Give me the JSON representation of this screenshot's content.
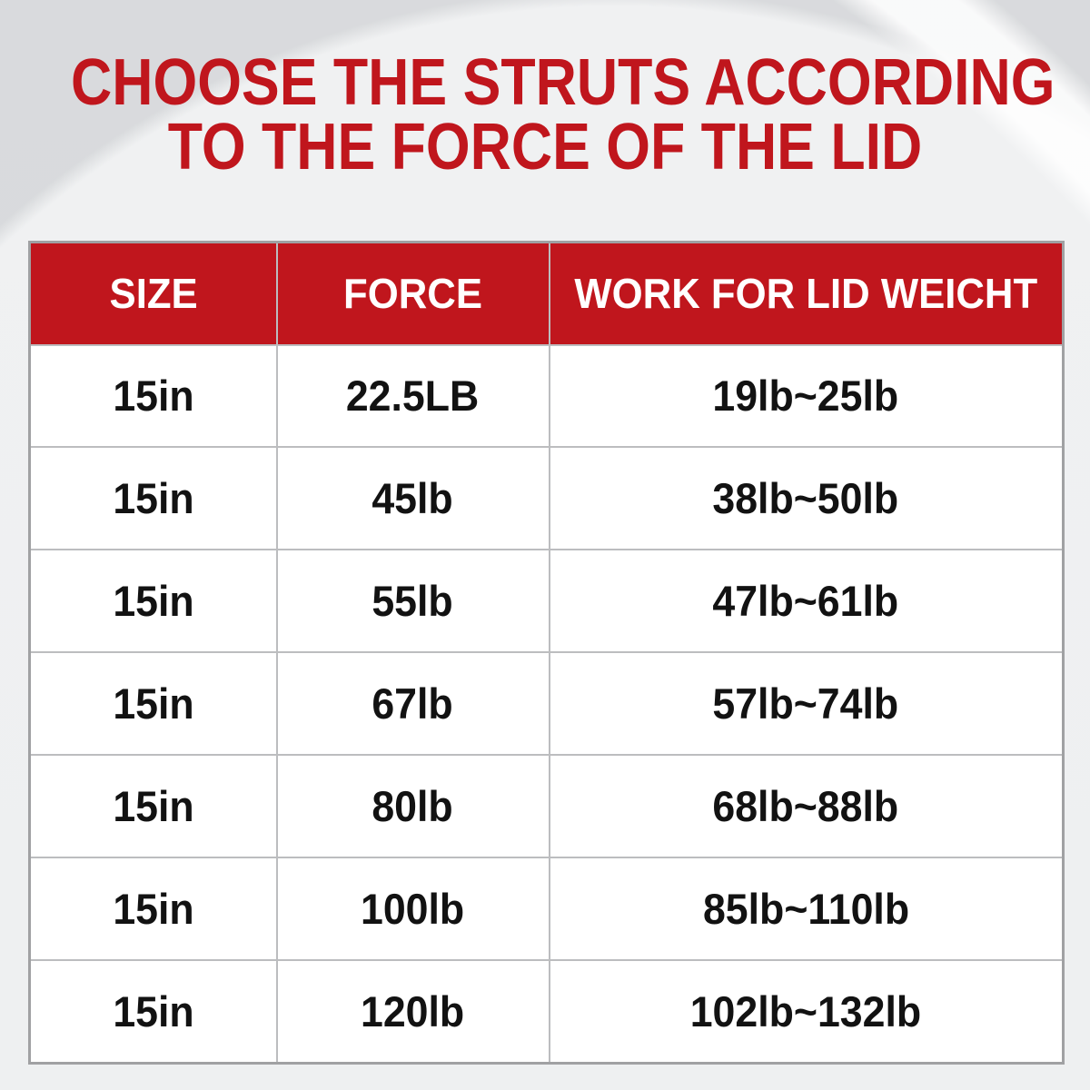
{
  "title": {
    "line1": "CHOOSE THE STRUTS ACCORDING",
    "line2": "TO THE FORCE OF THE LID"
  },
  "chart_data": {
    "type": "table",
    "title": "CHOOSE THE STRUTS ACCORDING TO THE FORCE OF THE LID",
    "columns": [
      "SIZE",
      "FORCE",
      "WORK FOR LID WEICHT"
    ],
    "rows": [
      [
        "15in",
        "22.5LB",
        "19lb~25lb"
      ],
      [
        "15in",
        "45lb",
        "38lb~50lb"
      ],
      [
        "15in",
        "55lb",
        "47lb~61lb"
      ],
      [
        "15in",
        "67lb",
        "57lb~74lb"
      ],
      [
        "15in",
        "80lb",
        "68lb~88lb"
      ],
      [
        "15in",
        "100lb",
        "85lb~110lb"
      ],
      [
        "15in",
        "120lb",
        "102lb~132lb"
      ]
    ],
    "layout_hints": {
      "header_background": "#c0161d",
      "header_text_color": "#ffffff",
      "body_background": "#ffffff",
      "grid_on": true
    }
  },
  "colors": {
    "accent_red": "#c0161d",
    "header_text": "#ffffff",
    "body_text": "#121212",
    "grid_line": "#bcbdbf",
    "outer_border": "#a0a1a3",
    "background": "#f0f1f2",
    "background_shade": "#d9dadc"
  }
}
